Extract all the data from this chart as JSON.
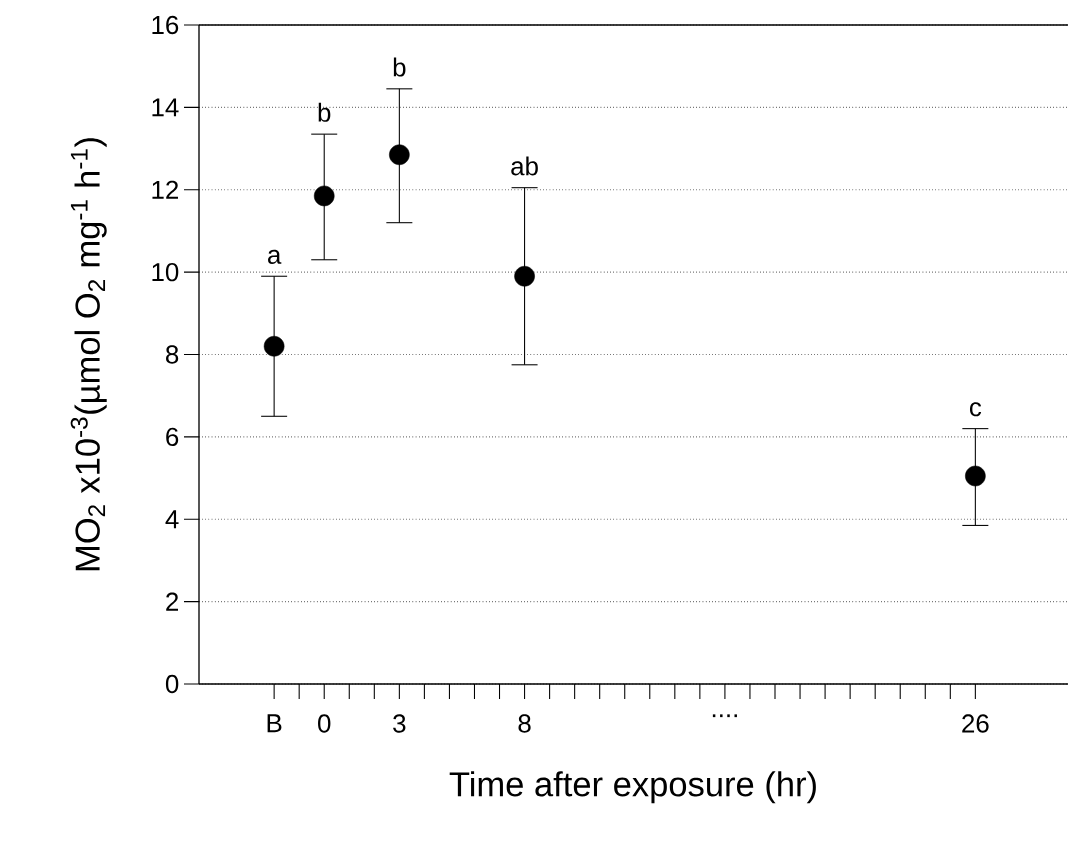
{
  "chart_data": {
    "type": "scatter",
    "xlabel": "Time after exposure (hr)",
    "ylabel": "MO$_{2}$ x10$^{-3}$(µmol O$_{2}$ mg$^{-1}$ h$^{-1}$)",
    "x": [
      -2,
      0,
      3,
      8,
      26
    ],
    "values": [
      8.2,
      11.85,
      12.85,
      9.9,
      5.05
    ],
    "errors": [
      [
        6.5,
        9.9
      ],
      [
        10.3,
        13.35
      ],
      [
        11.2,
        14.45
      ],
      [
        7.75,
        12.05
      ],
      [
        3.85,
        6.2
      ]
    ],
    "color": "#000000",
    "marker": "circle",
    "xlim": [
      -5,
      29.7
    ],
    "xticks": [
      {
        "value": -2,
        "label": "B"
      },
      {
        "value": -1,
        "label": null
      },
      0,
      {
        "value": 1,
        "label": null
      },
      {
        "value": 2,
        "label": null
      },
      3,
      {
        "value": 4,
        "label": null
      },
      {
        "value": 5,
        "label": null
      },
      {
        "value": 6,
        "label": null
      },
      {
        "value": 7,
        "label": null
      },
      8,
      {
        "value": 9,
        "label": null
      },
      {
        "value": 10,
        "label": null
      },
      {
        "value": 11,
        "label": null
      },
      {
        "value": 12,
        "label": null
      },
      {
        "value": 13,
        "label": null
      },
      {
        "value": 14,
        "label": null
      },
      {
        "value": 15,
        "label": null
      },
      {
        "value": 16,
        "label": "...."
      },
      {
        "value": 17,
        "label": null
      },
      {
        "value": 18,
        "label": null
      },
      {
        "value": 19,
        "label": null
      },
      {
        "value": 20,
        "label": null
      },
      {
        "value": 21,
        "label": null
      },
      {
        "value": 22,
        "label": null
      },
      {
        "value": 23,
        "label": null
      },
      {
        "value": 24,
        "label": null
      },
      {
        "value": 25,
        "label": null
      },
      26
    ],
    "ylim": [
      0,
      16
    ],
    "yticks": [
      0,
      2,
      4,
      6,
      8,
      10,
      12,
      14,
      16
    ],
    "grid": "y",
    "annotations": [
      "a",
      "b",
      "b",
      "ab",
      "c"
    ]
  }
}
